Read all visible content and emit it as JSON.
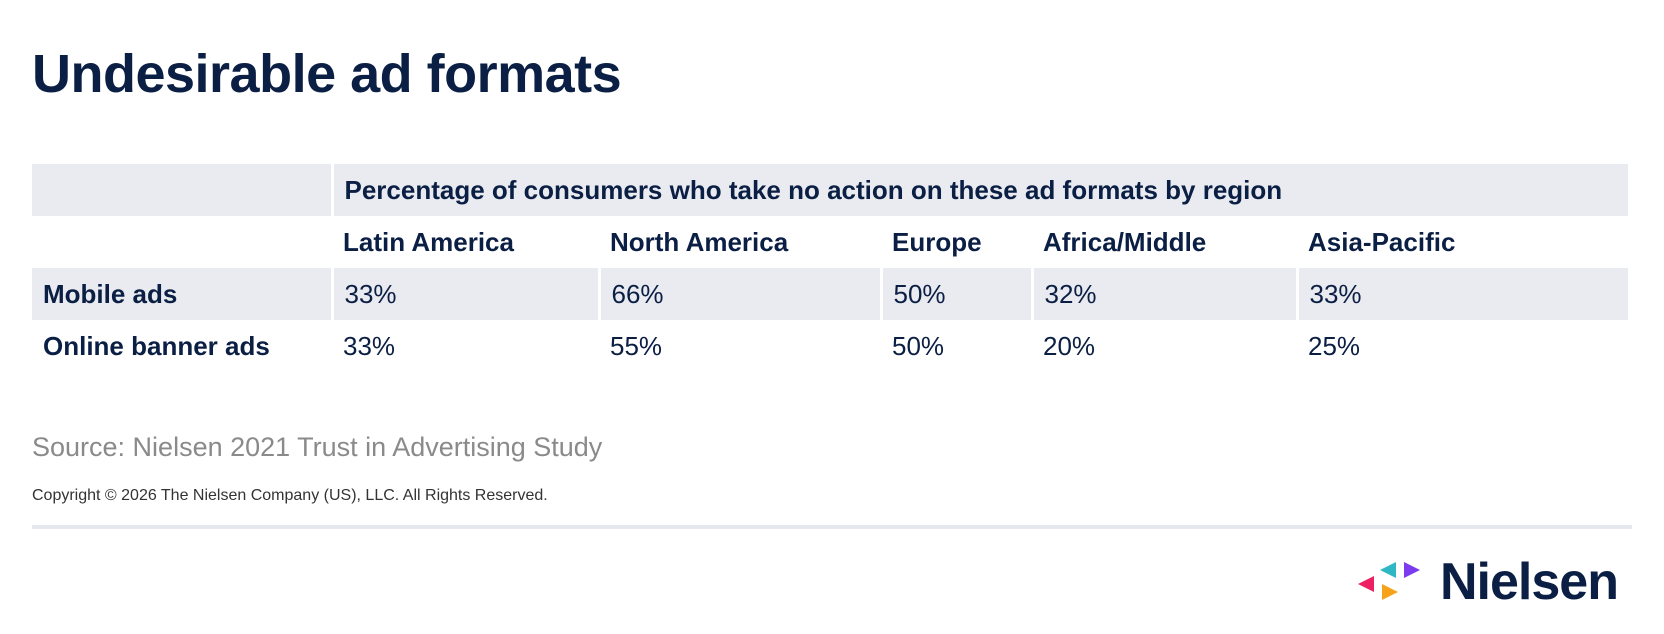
{
  "title": "Undesirable ad formats",
  "table": {
    "super_header": "Percentage of consumers who take no action on these ad formats by region",
    "columns": [
      "Latin America",
      "North America",
      "Europe",
      "Africa/Middle",
      "Asia-Pacific"
    ],
    "rows": [
      {
        "label": "Mobile ads",
        "values": [
          "33%",
          "66%",
          "50%",
          "32%",
          "33%"
        ]
      },
      {
        "label": "Online banner ads",
        "values": [
          "33%",
          "55%",
          "50%",
          "20%",
          "25%"
        ]
      }
    ]
  },
  "chart_data": {
    "type": "table",
    "title": "Undesirable ad formats",
    "subtitle": "Percentage of consumers who take no action on these ad formats by region",
    "categories": [
      "Latin America",
      "North America",
      "Europe",
      "Africa/Middle",
      "Asia-Pacific"
    ],
    "series": [
      {
        "name": "Mobile ads",
        "values": [
          33,
          66,
          50,
          32,
          33
        ]
      },
      {
        "name": "Online banner ads",
        "values": [
          33,
          55,
          50,
          20,
          25
        ]
      }
    ],
    "unit": "%"
  },
  "source": "Source: Nielsen 2021 Trust in Advertising Study",
  "copyright": "Copyright © 2026 The Nielsen Company (US), LLC. All Rights Reserved.",
  "logo": {
    "text": "Nielsen",
    "icon": "nielsen-triangles-icon",
    "colors": {
      "pink": "#ef1f64",
      "teal": "#2fb7c4",
      "purple": "#7b3cf0",
      "orange": "#f7a21b"
    }
  },
  "colors": {
    "navy": "#0b1f44",
    "shade": "#e9ebf0",
    "source_gray": "#8a8a8a"
  }
}
